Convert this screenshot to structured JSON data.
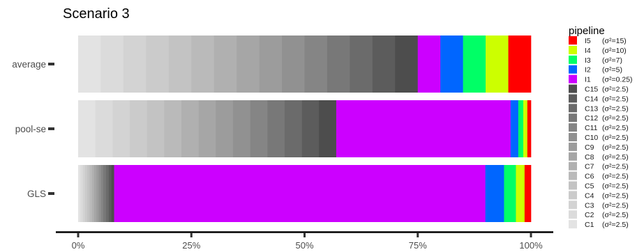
{
  "chart_data": {
    "type": "bar",
    "orientation": "horizontal",
    "stacked": true,
    "title": "Scenario 3",
    "categories": [
      "average",
      "pool-se",
      "GLS"
    ],
    "xlim": [
      0,
      100
    ],
    "x_ticks": [
      "0%",
      "25%",
      "50%",
      "75%",
      "100%"
    ],
    "grid": false,
    "legend": {
      "title": "pipeline",
      "position": "right",
      "entries": [
        {
          "name": "I5",
          "note": "(σ²=15)",
          "color": "#ff0000"
        },
        {
          "name": "I4",
          "note": "(σ²=10)",
          "color": "#ccff00"
        },
        {
          "name": "I3",
          "note": "(σ²=7)",
          "color": "#00ff66"
        },
        {
          "name": "I2",
          "note": "(σ²=5)",
          "color": "#0066ff"
        },
        {
          "name": "I1",
          "note": "(σ²=0.25)",
          "color": "#cc00ff"
        },
        {
          "name": "C15",
          "note": "(σ²=2.5)",
          "color": "#4d4d4d"
        },
        {
          "name": "C14",
          "note": "(σ²=2.5)",
          "color": "#5c5c5c"
        },
        {
          "name": "C13",
          "note": "(σ²=2.5)",
          "color": "#6b6b6b"
        },
        {
          "name": "C12",
          "note": "(σ²=2.5)",
          "color": "#787878"
        },
        {
          "name": "C11",
          "note": "(σ²=2.5)",
          "color": "#858585"
        },
        {
          "name": "C10",
          "note": "(σ²=2.5)",
          "color": "#919191"
        },
        {
          "name": "C9",
          "note": "(σ²=2.5)",
          "color": "#9c9c9c"
        },
        {
          "name": "C8",
          "note": "(σ²=2.5)",
          "color": "#a6a6a6"
        },
        {
          "name": "C7",
          "note": "(σ²=2.5)",
          "color": "#b0b0b0"
        },
        {
          "name": "C6",
          "note": "(σ²=2.5)",
          "color": "#bababa"
        },
        {
          "name": "C5",
          "note": "(σ²=2.5)",
          "color": "#c3c3c3"
        },
        {
          "name": "C4",
          "note": "(σ²=2.5)",
          "color": "#cbcbcb"
        },
        {
          "name": "C3",
          "note": "(σ²=2.5)",
          "color": "#d3d3d3"
        },
        {
          "name": "C2",
          "note": "(σ²=2.5)",
          "color": "#dbdbdb"
        },
        {
          "name": "C1",
          "note": "(σ²=2.5)",
          "color": "#e3e3e3"
        }
      ]
    },
    "stack_order": [
      "C1",
      "C2",
      "C3",
      "C4",
      "C5",
      "C6",
      "C7",
      "C8",
      "C9",
      "C10",
      "C11",
      "C12",
      "C13",
      "C14",
      "C15",
      "I1",
      "I2",
      "I3",
      "I4",
      "I5"
    ],
    "series": [
      {
        "name": "C1",
        "values": [
          5.0,
          3.8,
          0.5
        ]
      },
      {
        "name": "C2",
        "values": [
          5.0,
          3.8,
          0.5
        ]
      },
      {
        "name": "C3",
        "values": [
          5.0,
          3.8,
          0.5
        ]
      },
      {
        "name": "C4",
        "values": [
          5.0,
          3.8,
          0.5
        ]
      },
      {
        "name": "C5",
        "values": [
          5.0,
          3.8,
          0.5
        ]
      },
      {
        "name": "C6",
        "values": [
          5.0,
          3.8,
          0.5
        ]
      },
      {
        "name": "C7",
        "values": [
          5.0,
          3.8,
          0.5
        ]
      },
      {
        "name": "C8",
        "values": [
          5.0,
          3.8,
          0.5
        ]
      },
      {
        "name": "C9",
        "values": [
          5.0,
          3.8,
          0.5
        ]
      },
      {
        "name": "C10",
        "values": [
          5.0,
          3.8,
          0.5
        ]
      },
      {
        "name": "C11",
        "values": [
          5.0,
          3.8,
          0.5
        ]
      },
      {
        "name": "C12",
        "values": [
          5.0,
          3.8,
          0.6
        ]
      },
      {
        "name": "C13",
        "values": [
          5.0,
          3.8,
          0.6
        ]
      },
      {
        "name": "C14",
        "values": [
          5.0,
          3.8,
          0.6
        ]
      },
      {
        "name": "C15",
        "values": [
          5.0,
          3.8,
          0.6
        ]
      },
      {
        "name": "I1",
        "values": [
          5.0,
          38.5,
          81.4
        ]
      },
      {
        "name": "I2",
        "values": [
          5.0,
          1.7,
          4.1
        ]
      },
      {
        "name": "I3",
        "values": [
          5.0,
          1.1,
          2.6
        ]
      },
      {
        "name": "I4",
        "values": [
          5.0,
          0.9,
          1.9
        ]
      },
      {
        "name": "I5",
        "values": [
          5.0,
          0.8,
          1.4
        ]
      }
    ]
  }
}
